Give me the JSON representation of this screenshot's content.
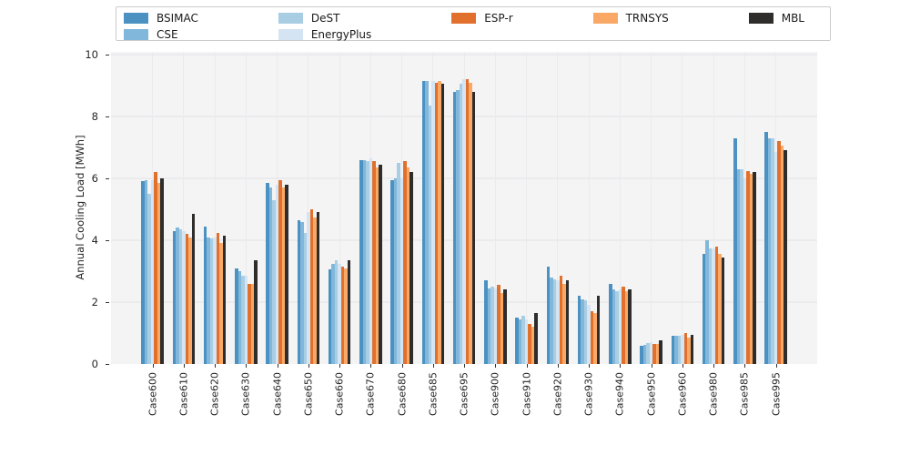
{
  "figure": {
    "background": "#ffffff",
    "plot_background": "#f4f4f5",
    "grid_color": "#ebebed"
  },
  "chart_data": {
    "type": "bar",
    "title": "",
    "xlabel": "",
    "ylabel": "Annual Cooling Load [MWh]",
    "ylim": [
      0,
      10
    ],
    "yticks": [
      0,
      2,
      4,
      6,
      8,
      10
    ],
    "grid": true,
    "legend_position": "top",
    "categories": [
      "Case600",
      "Case610",
      "Case620",
      "Case630",
      "Case640",
      "Case650",
      "Case660",
      "Case670",
      "Case680",
      "Case685",
      "Case695",
      "Case900",
      "Case910",
      "Case920",
      "Case930",
      "Case940",
      "Case950",
      "Case960",
      "Case980",
      "Case985",
      "Case995"
    ],
    "series": [
      {
        "name": "BSIMAC",
        "color": "#4b92c3",
        "values": [
          5.9,
          4.3,
          4.45,
          3.1,
          5.85,
          4.65,
          3.05,
          6.6,
          5.95,
          9.15,
          8.8,
          2.7,
          1.5,
          3.15,
          2.2,
          2.6,
          0.6,
          0.9,
          3.55,
          7.3,
          7.5
        ]
      },
      {
        "name": "CSE",
        "color": "#80b7da",
        "values": [
          5.95,
          4.4,
          4.1,
          3.0,
          5.7,
          4.6,
          3.25,
          6.6,
          6.0,
          9.15,
          8.85,
          2.45,
          1.45,
          2.8,
          2.1,
          2.4,
          0.62,
          0.9,
          4.0,
          6.3,
          7.3
        ]
      },
      {
        "name": "DeST",
        "color": "#a9cee4",
        "values": [
          5.5,
          4.35,
          4.05,
          2.85,
          5.3,
          4.25,
          3.35,
          6.55,
          6.5,
          8.35,
          9.05,
          2.5,
          1.55,
          2.75,
          2.05,
          2.35,
          0.68,
          0.92,
          3.75,
          6.3,
          7.3
        ]
      },
      {
        "name": "EnergyPlus",
        "color": "#d4e4f2",
        "values": [
          5.95,
          4.3,
          4.1,
          2.85,
          5.8,
          4.9,
          3.25,
          6.65,
          6.0,
          9.15,
          9.2,
          2.45,
          1.45,
          2.7,
          1.9,
          2.4,
          0.72,
          0.93,
          3.75,
          6.0,
          6.85
        ]
      },
      {
        "name": "ESP-r",
        "color": "#e2702d",
        "values": [
          6.2,
          4.2,
          4.25,
          2.6,
          5.95,
          5.0,
          3.15,
          6.55,
          6.55,
          9.1,
          9.2,
          2.55,
          1.3,
          2.85,
          1.7,
          2.5,
          0.65,
          1.0,
          3.8,
          6.25,
          7.2
        ]
      },
      {
        "name": "TRNSYS",
        "color": "#f9a965",
        "values": [
          5.85,
          4.1,
          3.9,
          2.6,
          5.7,
          4.75,
          3.1,
          6.35,
          6.35,
          9.15,
          9.1,
          2.3,
          1.2,
          2.6,
          1.65,
          2.35,
          0.65,
          0.85,
          3.55,
          6.15,
          7.05
        ]
      },
      {
        "name": "MBL",
        "color": "#2e2d2c",
        "values": [
          6.0,
          4.85,
          4.15,
          3.35,
          5.8,
          4.9,
          3.35,
          6.45,
          6.2,
          9.05,
          8.8,
          2.4,
          1.65,
          2.7,
          2.2,
          2.4,
          0.77,
          0.95,
          3.45,
          6.2,
          6.9
        ]
      }
    ]
  },
  "legend": {
    "columns": [
      [
        "BSIMAC",
        "CSE"
      ],
      [
        "DeST",
        "EnergyPlus"
      ],
      [
        "ESP-r"
      ],
      [
        "TRNSYS"
      ],
      [
        "MBL"
      ]
    ]
  }
}
